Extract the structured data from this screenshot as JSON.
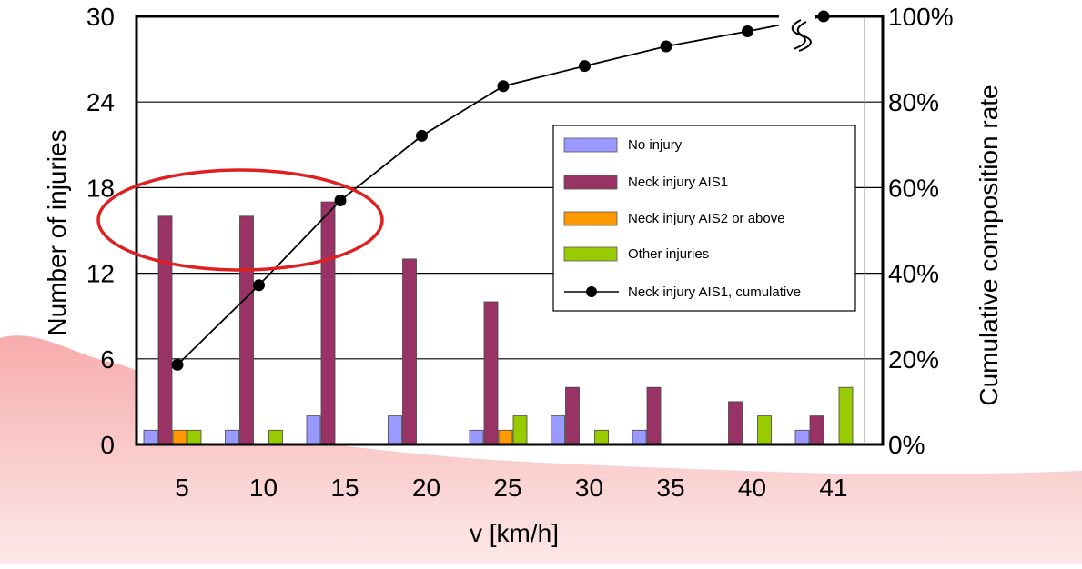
{
  "chart_data": {
    "type": "bar",
    "title": "",
    "xlabel": "v [km/h]",
    "ylabel": "Number of injuries",
    "y2label": "Cumulative composition rate",
    "categories": [
      "5",
      "10",
      "15",
      "20",
      "25",
      "30",
      "35",
      "40",
      "41"
    ],
    "ylim": [
      0,
      30
    ],
    "yticks": [
      "0",
      "6",
      "12",
      "18",
      "24",
      "30"
    ],
    "y2lim": [
      0,
      100
    ],
    "y2ticks": [
      "0%",
      "20%",
      "40%",
      "60%",
      "80%",
      "100%"
    ],
    "grid": true,
    "legend_position": "right",
    "series": [
      {
        "name": "No injury",
        "color": "#9999ff",
        "values": [
          1,
          1,
          2,
          2,
          1,
          2,
          1,
          0,
          1
        ]
      },
      {
        "name": "Neck injury AIS1",
        "color": "#993366",
        "values": [
          16,
          16,
          17,
          13,
          10,
          4,
          4,
          3,
          2
        ]
      },
      {
        "name": "Neck injury AIS2 or above",
        "color": "#ff9900",
        "values": [
          1,
          0,
          0,
          0,
          1,
          0,
          0,
          0,
          0
        ]
      },
      {
        "name": "Other injuries",
        "color": "#99cc00",
        "values": [
          1,
          1,
          0,
          0,
          2,
          1,
          0,
          2,
          4
        ]
      }
    ],
    "line_series": {
      "name": "Neck injury AIS1, cumulative",
      "color": "#000000",
      "axis": "right",
      "values": [
        18.6,
        37.2,
        57.0,
        72.1,
        83.7,
        88.4,
        93.0,
        96.5,
        100
      ]
    },
    "annotations": {
      "highlight": "ellipse",
      "highlight_color": "#e02020",
      "axis_break": "break-mark"
    }
  },
  "decoration": {
    "background_wave_color": "#f4a0a0"
  }
}
